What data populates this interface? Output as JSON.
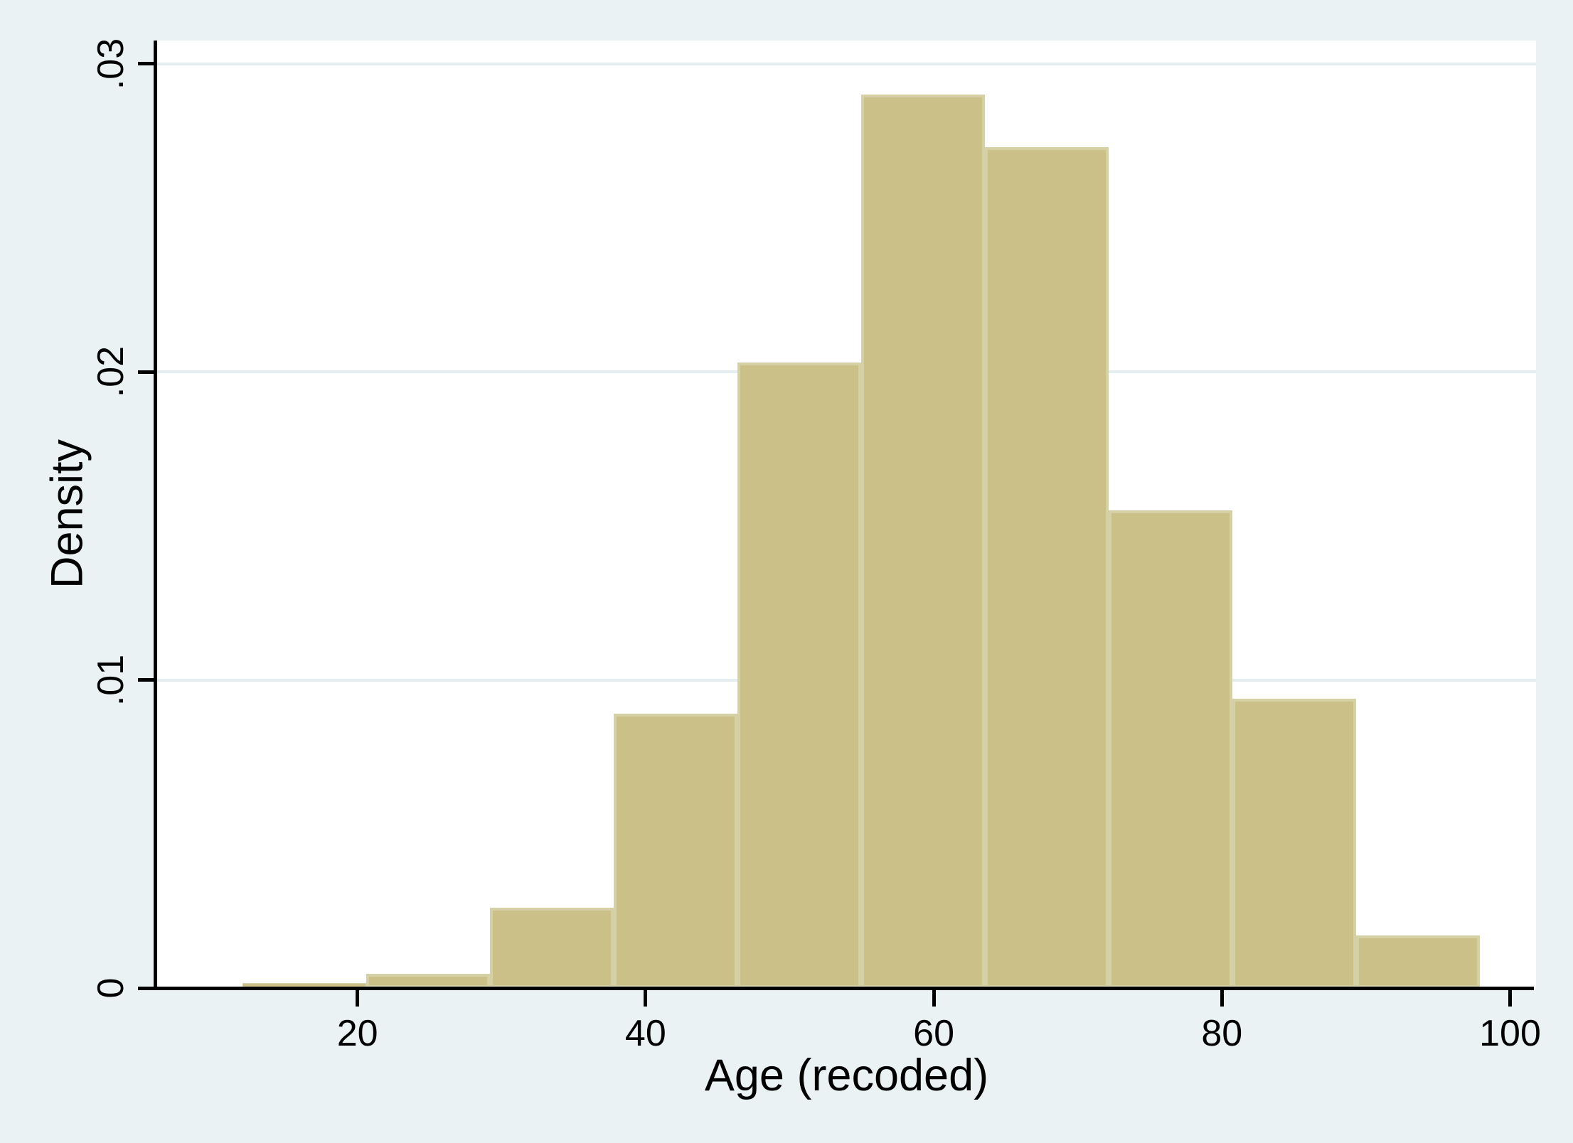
{
  "chart_data": {
    "type": "bar",
    "subtype": "histogram",
    "title": "",
    "xlabel": "Age (recoded)",
    "ylabel": "Density",
    "bin_start": 12,
    "bin_width": 8.59,
    "densities": [
      0.00015,
      0.00045,
      0.0026,
      0.0089,
      0.0203,
      0.029,
      0.0273,
      0.0155,
      0.0094,
      0.0017
    ],
    "x_ticks": [
      20,
      40,
      60,
      80,
      100
    ],
    "x_tick_labels": [
      "20",
      "40",
      "60",
      "80",
      "100"
    ],
    "y_ticks": [
      0,
      0.01,
      0.02,
      0.03
    ],
    "y_tick_labels": [
      "0",
      ".01",
      ".02",
      ".03"
    ],
    "xlim": [
      6.1,
      101.8
    ],
    "ylim": [
      0,
      0.03075
    ],
    "grid": "horizontal-on",
    "legend": "none"
  },
  "theme": {
    "bg": "#eaf2f3",
    "plot_bg": "#ffffff",
    "grid": "#e4eef0",
    "bar_fill": "#cbc088",
    "bar_edge": "#d5d0a6",
    "axis": "#000000",
    "text": "#000000"
  }
}
